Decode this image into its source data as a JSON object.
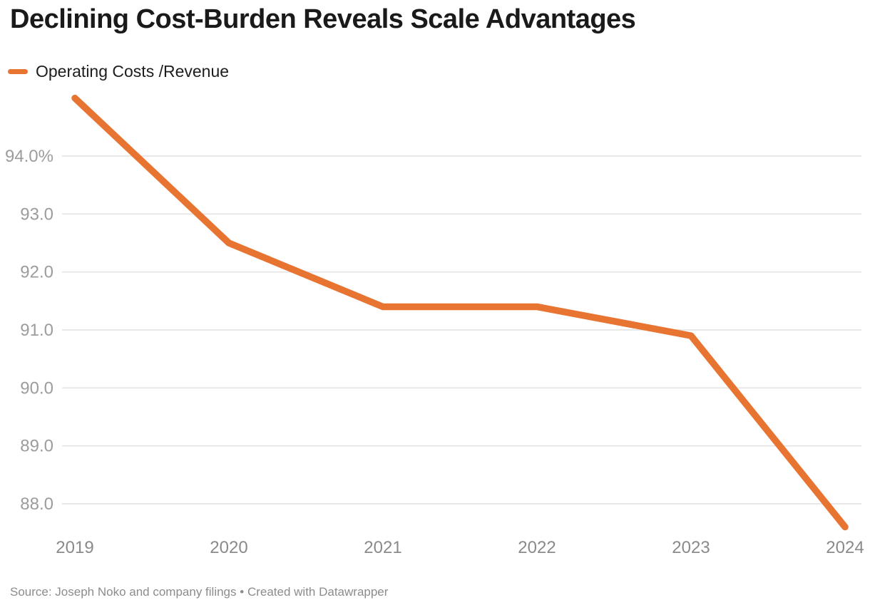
{
  "header": {
    "title": "Declining Cost-Burden Reveals Scale Advantages"
  },
  "legend": {
    "label": "Operating Costs /Revenue",
    "swatch_color": "#E87432"
  },
  "footer": {
    "source": "Source: Joseph Noko and company filings",
    "separator": "•",
    "created": "Created with Datawrapper"
  },
  "chart_data": {
    "type": "line",
    "title": "Declining Cost-Burden Reveals Scale Advantages",
    "categories": [
      "2019",
      "2020",
      "2021",
      "2022",
      "2023",
      "2024"
    ],
    "series": [
      {
        "name": "Operating Costs /Revenue",
        "color": "#E87432",
        "values": [
          95.0,
          92.5,
          91.4,
          91.4,
          90.9,
          87.6
        ]
      }
    ],
    "unit": "%",
    "yticks": [
      {
        "value": 94.0,
        "label": "94.0%"
      },
      {
        "value": 93.0,
        "label": "93.0"
      },
      {
        "value": 92.0,
        "label": "92.0"
      },
      {
        "value": 91.0,
        "label": "91.0"
      },
      {
        "value": 90.0,
        "label": "90.0"
      },
      {
        "value": 89.0,
        "label": "89.0"
      },
      {
        "value": 88.0,
        "label": "88.0"
      }
    ],
    "xlabel": "",
    "ylabel": "",
    "ylim_displayed": [
      87.6,
      95.0
    ],
    "grid": "horizontal",
    "legend_position": "top-left",
    "colors": {
      "line": "#E87432",
      "grid": "#e4e4e4",
      "y_tick_text": "#9c9c9c",
      "x_tick_text": "#8a8a8a"
    }
  }
}
